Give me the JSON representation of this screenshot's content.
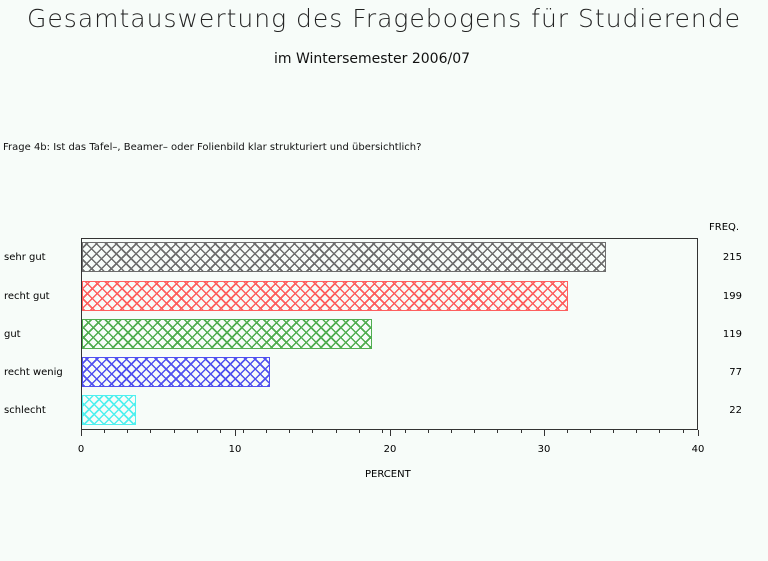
{
  "header": {
    "title": "Gesamtauswertung des Fragebogens für Studierende",
    "subtitle": "im Wintersemester 2006/07",
    "question": "Frage 4b: Ist das Tafel–, Beamer– oder Folienbild klar strukturiert und übersichtlich?"
  },
  "chart_data": {
    "type": "bar",
    "orientation": "horizontal",
    "title": "Gesamtauswertung des Fragebogens für Studierende",
    "subtitle": "im Wintersemester 2006/07",
    "question": "Frage 4b: Ist das Tafel–, Beamer– oder Folienbild klar strukturiert und übersichtlich?",
    "categories": [
      "sehr gut",
      "recht gut",
      "gut",
      "recht wenig",
      "schlecht"
    ],
    "values": [
      34.0,
      31.5,
      18.8,
      12.2,
      3.5
    ],
    "frequencies": [
      215,
      199,
      119,
      77,
      22
    ],
    "freq_header": "FREQ.",
    "colors": [
      "#555555",
      "#ff4444",
      "#33a033",
      "#3333ee",
      "#33eeee"
    ],
    "xlabel": "PERCENT",
    "ylabel": "",
    "xlim": [
      0,
      40
    ],
    "xticks": [
      0,
      10,
      20,
      30,
      40
    ],
    "minor_tick_step": 1.5,
    "grid": false,
    "legend": "none",
    "fill_pattern": "crosshatch"
  }
}
